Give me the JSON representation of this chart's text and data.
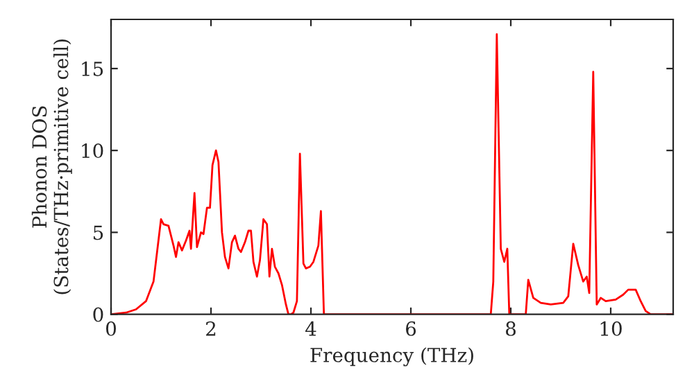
{
  "chart_data": {
    "type": "line",
    "xlabel": "Frequency (THz)",
    "ylabel": "Phonon DOS\n(States/THz·primitive cell)",
    "x": [
      0,
      0.3,
      0.5,
      0.7,
      0.85,
      1.0,
      1.05,
      1.15,
      1.25,
      1.3,
      1.35,
      1.42,
      1.5,
      1.57,
      1.6,
      1.67,
      1.72,
      1.8,
      1.85,
      1.92,
      1.98,
      2.03,
      2.1,
      2.15,
      2.22,
      2.28,
      2.35,
      2.42,
      2.48,
      2.55,
      2.6,
      2.68,
      2.75,
      2.8,
      2.85,
      2.92,
      2.98,
      3.05,
      3.12,
      3.17,
      3.22,
      3.28,
      3.35,
      3.42,
      3.5,
      3.55,
      3.6,
      3.65,
      3.72,
      3.78,
      3.85,
      3.9,
      3.98,
      4.05,
      4.15,
      4.2,
      4.26,
      7.6,
      7.65,
      7.72,
      7.8,
      7.87,
      7.93,
      7.97,
      8.3,
      8.35,
      8.45,
      8.6,
      8.8,
      9.05,
      9.15,
      9.25,
      9.35,
      9.45,
      9.52,
      9.57,
      9.65,
      9.72,
      9.8,
      9.9,
      10.1,
      10.25,
      10.35,
      10.5,
      10.6,
      10.7,
      10.8,
      11.25
    ],
    "series": [
      {
        "color": "#ff0000",
        "values": [
          0,
          0.1,
          0.3,
          0.8,
          2,
          5.8,
          5.5,
          5.4,
          4.2,
          3.5,
          4.4,
          3.9,
          4.5,
          5.1,
          4.0,
          7.4,
          4.1,
          5.0,
          4.9,
          6.5,
          6.5,
          9.1,
          10.0,
          9.3,
          5.0,
          3.5,
          2.8,
          4.4,
          4.8,
          4.0,
          3.8,
          4.4,
          5.1,
          5.1,
          3.2,
          2.3,
          3.3,
          5.8,
          5.5,
          2.3,
          4.0,
          2.9,
          2.5,
          1.8,
          0.6,
          0,
          0,
          0.1,
          0.8,
          9.8,
          3.1,
          2.8,
          2.9,
          3.2,
          4.2,
          6.3,
          0,
          0,
          2.0,
          17.1,
          4.0,
          3.2,
          4.0,
          0,
          0,
          2.1,
          1.0,
          0.7,
          0.6,
          0.7,
          1.1,
          4.3,
          3.0,
          2.0,
          2.3,
          1.3,
          14.8,
          0.6,
          1.0,
          0.8,
          0.9,
          1.2,
          1.5,
          1.5,
          0.8,
          0.2,
          0,
          0
        ]
      }
    ],
    "xlim": [
      0,
      11.25
    ],
    "ylim": [
      0,
      18
    ],
    "xticks": [
      0,
      2,
      4,
      6,
      8,
      10
    ],
    "yticks": [
      0,
      5,
      10,
      15
    ],
    "grid": false,
    "legend": false
  }
}
